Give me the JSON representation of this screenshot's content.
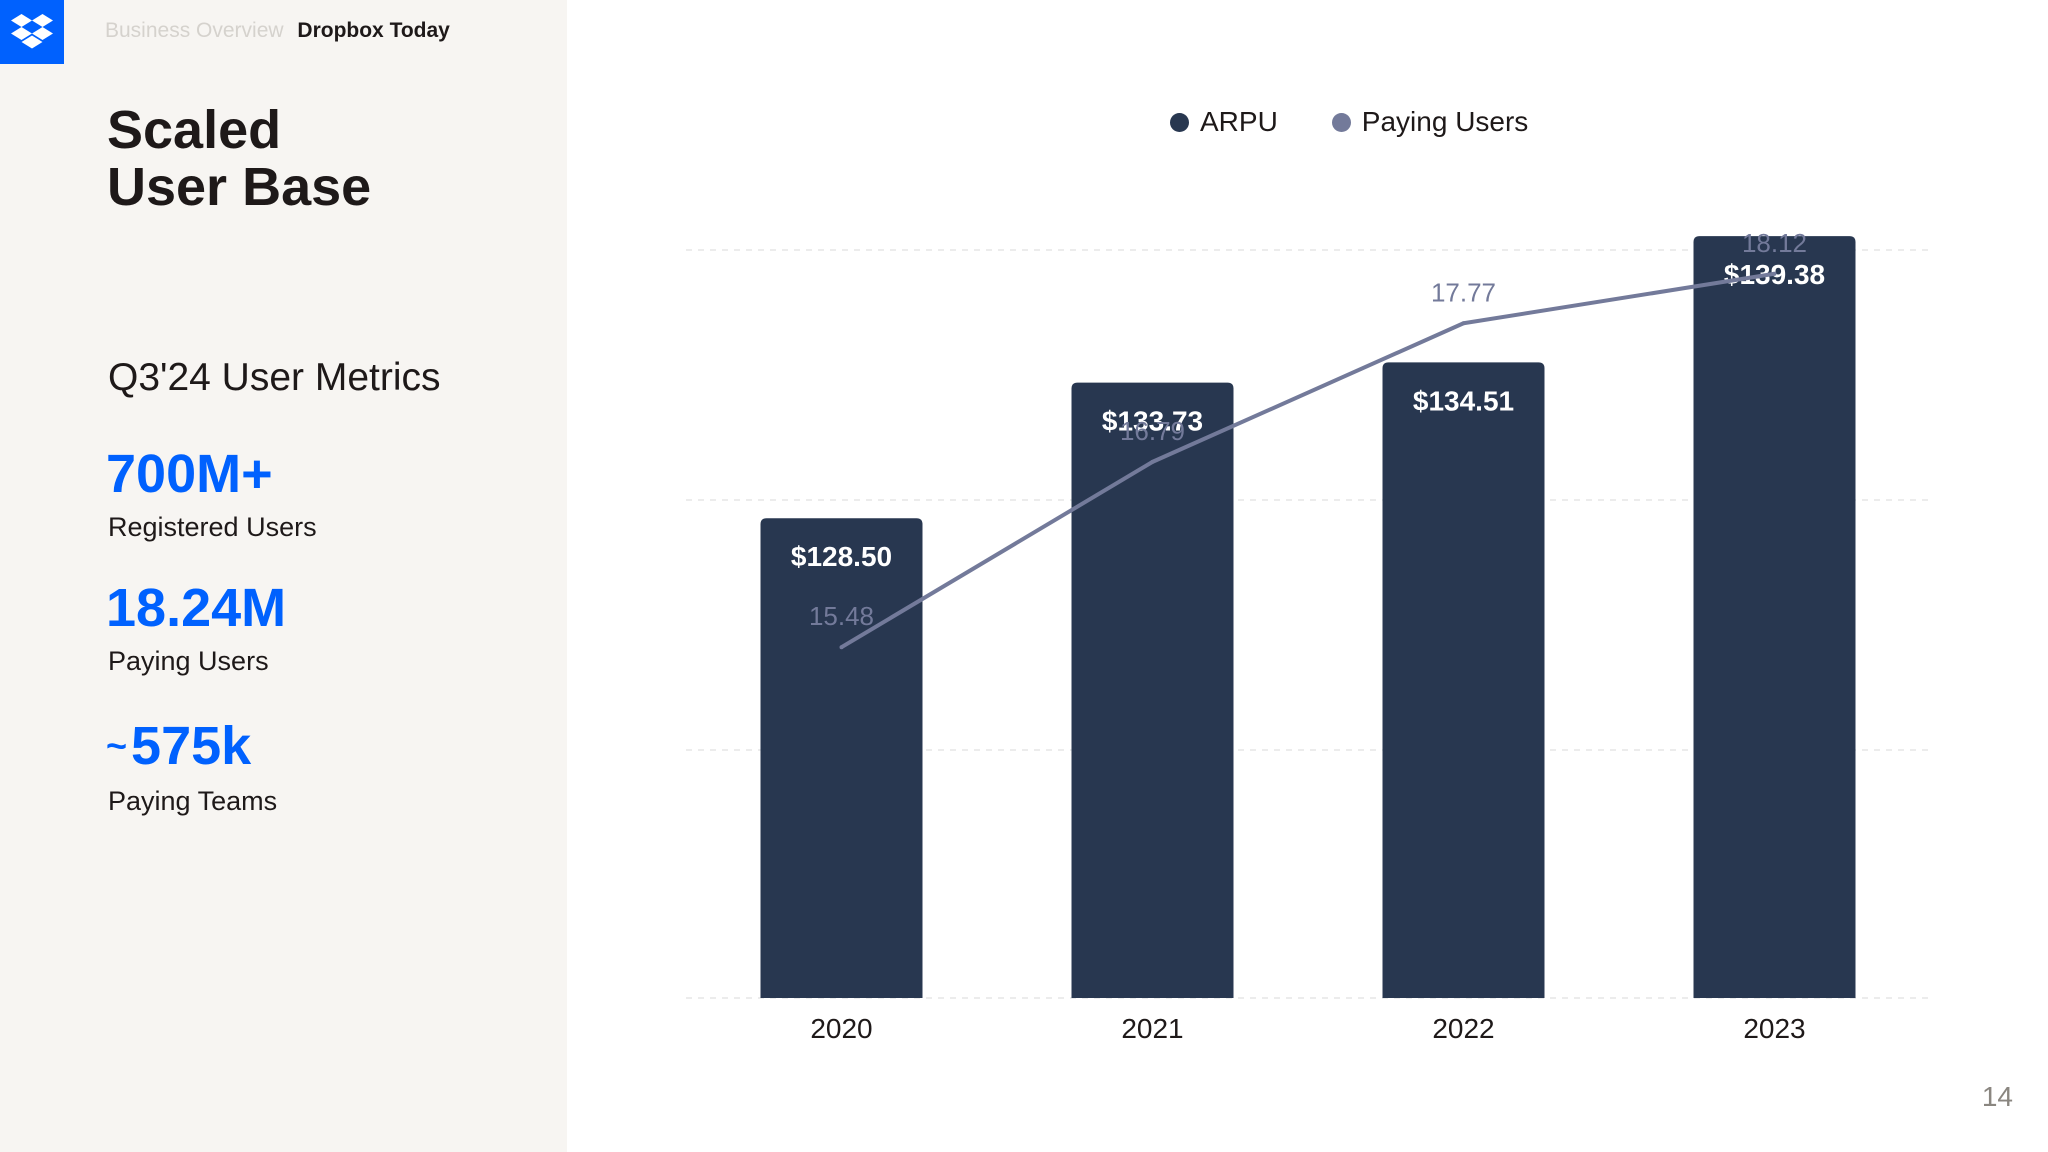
{
  "breadcrumb": {
    "section": "Business Overview",
    "current": "Dropbox Today"
  },
  "title_line1": "Scaled",
  "title_line2": "User Base",
  "subtitle": "Q3'24 User Metrics",
  "metrics": [
    {
      "value": "700M+",
      "label": "Registered Users"
    },
    {
      "value": "18.24M",
      "label": "Paying Users"
    },
    {
      "approx": "~",
      "value": "575k",
      "label": "Paying Teams"
    }
  ],
  "page_number": "14",
  "colors": {
    "brand_blue": "#0061fe",
    "arpu_bar": "#283750",
    "users_line": "#737a9a"
  },
  "chart_data": {
    "type": "bar",
    "categories": [
      "2020",
      "2021",
      "2022",
      "2023"
    ],
    "series": [
      {
        "name": "ARPU",
        "kind": "bar",
        "values": [
          128.5,
          133.73,
          134.51,
          139.38
        ],
        "labels": [
          "$128.50",
          "$133.73",
          "$134.51",
          "$139.38"
        ]
      },
      {
        "name": "Paying Users",
        "kind": "line",
        "values": [
          15.48,
          16.79,
          17.77,
          18.12
        ],
        "labels": [
          "15.48",
          "16.79",
          "17.77",
          "18.12"
        ]
      }
    ],
    "bar_ylim": [
      110,
      140
    ],
    "line_ylim": [
      13,
      18.5
    ],
    "legend": [
      "ARPU",
      "Paying Users"
    ],
    "grid": true
  }
}
